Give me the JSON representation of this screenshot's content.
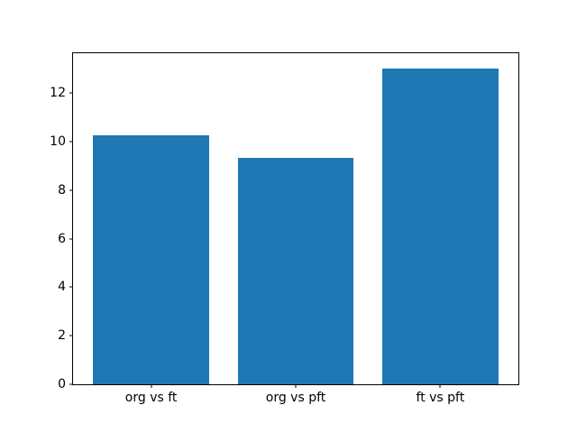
{
  "chart_data": {
    "type": "bar",
    "categories": [
      "org vs ft",
      "org vs pft",
      "ft vs pft"
    ],
    "values": [
      10.25,
      9.33,
      13.0
    ],
    "title": "",
    "xlabel": "",
    "ylabel": "",
    "ylim": [
      0,
      13.65
    ],
    "xlim": [
      -0.54,
      2.54
    ],
    "yticks": [
      0,
      2,
      4,
      6,
      8,
      10,
      12
    ],
    "bar_rel_width": 0.8,
    "grid": false,
    "legend": null
  },
  "colors": {
    "bar": "#1f77b4",
    "background": "#ffffff",
    "spine": "#000000",
    "text": "#000000"
  }
}
